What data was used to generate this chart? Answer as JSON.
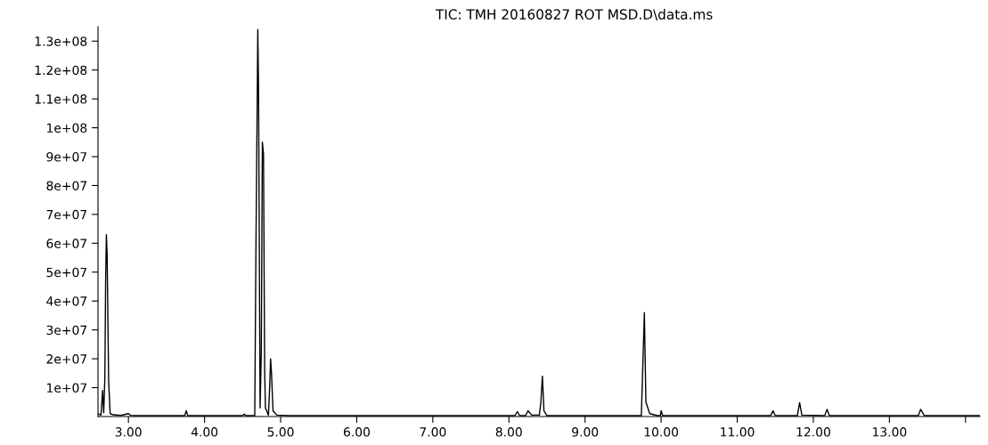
{
  "chart_data": {
    "type": "line",
    "title": "TIC: TMH 20160827 ROT MSD.D\\data.ms",
    "x": [
      2.6,
      2.64,
      2.66,
      2.675,
      2.69,
      2.7,
      2.71,
      2.72,
      2.74,
      2.76,
      2.8,
      2.9,
      3.0,
      3.03,
      3.1,
      3.5,
      3.74,
      3.76,
      3.78,
      4.0,
      4.5,
      4.52,
      4.55,
      4.66,
      4.676,
      4.7,
      4.71,
      4.73,
      4.746,
      4.76,
      4.775,
      4.79,
      4.8,
      4.84,
      4.856,
      4.868,
      4.88,
      4.9,
      4.95,
      5.1,
      6.0,
      8.08,
      8.11,
      8.14,
      8.22,
      8.25,
      8.3,
      8.4,
      8.42,
      8.44,
      8.46,
      8.5,
      9.74,
      9.78,
      9.8,
      9.85,
      9.95,
      9.99,
      10.0,
      10.02,
      11.44,
      11.47,
      11.5,
      11.79,
      11.82,
      11.85,
      12.15,
      12.18,
      12.21,
      13.38,
      13.41,
      13.46,
      14.19
    ],
    "values": [
      1000000,
      500000,
      9000000,
      1300000,
      13000000,
      46000000,
      63000000,
      56000000,
      12000000,
      1000000,
      600000,
      400000,
      1000000,
      400000,
      300000,
      300000,
      300000,
      2000000,
      300000,
      300000,
      300000,
      800000,
      300000,
      300000,
      60000000,
      134000000,
      113000000,
      3000000,
      22000000,
      95000000,
      91000000,
      16000000,
      3000000,
      500000,
      10000000,
      20000000,
      15000000,
      2000000,
      500000,
      300000,
      300000,
      300000,
      1700000,
      300000,
      300000,
      2000000,
      500000,
      500000,
      5000000,
      14000000,
      2000000,
      300000,
      300000,
      36000000,
      5000000,
      1000000,
      300000,
      300000,
      2000000,
      300000,
      300000,
      2000000,
      300000,
      300000,
      4800000,
      500000,
      300000,
      2500000,
      300000,
      300000,
      2500000,
      300000,
      300000
    ],
    "color": "#000000",
    "xlim": [
      2.6,
      14.19
    ],
    "xticks": [
      {
        "value": 3,
        "label": "3.00"
      },
      {
        "value": 4,
        "label": "4.00"
      },
      {
        "value": 5,
        "label": "5.00"
      },
      {
        "value": 6,
        "label": "6.00"
      },
      {
        "value": 7,
        "label": "7.00"
      },
      {
        "value": 8,
        "label": "8.00"
      },
      {
        "value": 9,
        "label": "9.00"
      },
      {
        "value": 10,
        "label": "10.00"
      },
      {
        "value": 11,
        "label": "11.00"
      },
      {
        "value": 12,
        "label": "12.00"
      },
      {
        "value": 13,
        "label": "13.00"
      },
      {
        "value": 14,
        "label": null
      }
    ],
    "ylim": [
      0,
      135000000
    ],
    "yticks": [
      {
        "value": 10000000,
        "label": "1e+07"
      },
      {
        "value": 20000000,
        "label": "2e+07"
      },
      {
        "value": 30000000,
        "label": "3e+07"
      },
      {
        "value": 40000000,
        "label": "4e+07"
      },
      {
        "value": 50000000,
        "label": "5e+07"
      },
      {
        "value": 60000000,
        "label": "6e+07"
      },
      {
        "value": 70000000,
        "label": "7e+07"
      },
      {
        "value": 80000000,
        "label": "8e+07"
      },
      {
        "value": 90000000,
        "label": "9e+07"
      },
      {
        "value": 100000000,
        "label": "1e+08"
      },
      {
        "value": 110000000,
        "label": "1.1e+08"
      },
      {
        "value": 120000000,
        "label": "1.2e+08"
      },
      {
        "value": 130000000,
        "label": "1.3e+08"
      }
    ],
    "grid": false,
    "legend": false
  }
}
